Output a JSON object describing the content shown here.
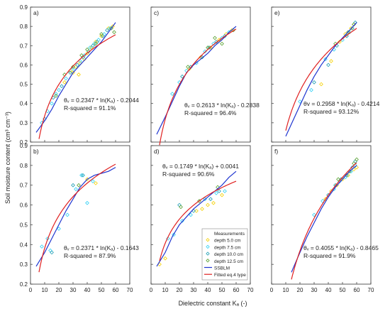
{
  "figure": {
    "ylabel": "Soil moisture content (cm³ cm⁻³)",
    "xlabel": "Dielectric constant Kₐ (-)"
  },
  "legend": {
    "items": [
      {
        "label": "Measurements",
        "kind": "header"
      },
      {
        "label": "depth 5.0 cm",
        "kind": "marker",
        "color": "#f5d000"
      },
      {
        "label": "depth 7.5 cm",
        "kind": "marker",
        "color": "#30d0f5"
      },
      {
        "label": "depth 10.0 cm",
        "kind": "marker",
        "color": "#1e9eb4"
      },
      {
        "label": "depth 12.5 cm",
        "kind": "marker",
        "color": "#58a030"
      },
      {
        "label": "SSBLM",
        "kind": "line",
        "color": "#1f35d0"
      },
      {
        "label": "Fitted eq.4 type",
        "kind": "line",
        "color": "#e02020"
      }
    ]
  },
  "colors": {
    "ssblm": "#1f35d0",
    "fitted": "#e02020",
    "d5": "#f5d000",
    "d75": "#30d0f5",
    "d10": "#1e9eb4",
    "d125": "#58a030"
  },
  "chart_data": [
    {
      "type": "scatter",
      "panel": "a)",
      "xlim": [
        0,
        70
      ],
      "ylim": [
        0.2,
        0.9
      ],
      "xticks": [
        "0",
        "10",
        "20",
        "30",
        "40",
        "50",
        "60",
        "70"
      ],
      "yticks": [
        "0.2",
        "0.3",
        "0.4",
        "0.5",
        "0.6",
        "0.7",
        "0.8",
        "0.9"
      ],
      "show_x_ticklabels": false,
      "show_y_ticklabels": true,
      "annotation": {
        "equation": "θᵥ = 0.2347 * ln(Kₐ) - 0.2044",
        "rsq": "R-squared = 91.1%"
      },
      "fitted": {
        "a": 0.2347,
        "b": -0.2044,
        "xmin": 6,
        "xmax": 60
      },
      "ssblm": {
        "x": [
          4,
          10,
          15,
          20,
          25,
          30,
          35,
          40,
          45,
          50,
          55,
          60
        ],
        "y": [
          0.25,
          0.31,
          0.37,
          0.44,
          0.5,
          0.56,
          0.6,
          0.64,
          0.68,
          0.72,
          0.77,
          0.82
        ]
      },
      "series": [
        {
          "key": "d5",
          "x": [
            24,
            28,
            32,
            34,
            38,
            40,
            43,
            46,
            50,
            55,
            58,
            30,
            35
          ],
          "y": [
            0.51,
            0.57,
            0.59,
            0.55,
            0.63,
            0.66,
            0.69,
            0.72,
            0.75,
            0.79,
            0.8,
            0.56,
            0.61
          ]
        },
        {
          "key": "d75",
          "x": [
            8,
            12,
            15,
            18,
            20,
            25,
            30,
            35,
            38,
            42,
            45,
            48,
            52,
            56
          ],
          "y": [
            0.3,
            0.36,
            0.4,
            0.45,
            0.47,
            0.53,
            0.58,
            0.62,
            0.65,
            0.69,
            0.71,
            0.73,
            0.76,
            0.79
          ]
        },
        {
          "key": "d10",
          "x": [
            10,
            16,
            22,
            28,
            33,
            37,
            41,
            44,
            47,
            51,
            54
          ],
          "y": [
            0.32,
            0.43,
            0.49,
            0.56,
            0.6,
            0.64,
            0.67,
            0.7,
            0.72,
            0.75,
            0.78
          ]
        },
        {
          "key": "d125",
          "x": [
            18,
            24,
            30,
            36,
            40,
            46,
            50,
            57,
            59
          ],
          "y": [
            0.44,
            0.55,
            0.59,
            0.65,
            0.68,
            0.71,
            0.76,
            0.79,
            0.77
          ]
        }
      ]
    },
    {
      "type": "scatter",
      "panel": "c)",
      "xlim": [
        0,
        70
      ],
      "ylim": [
        0.2,
        0.9
      ],
      "xticks": [
        "0",
        "10",
        "20",
        "30",
        "40",
        "50",
        "60",
        "70"
      ],
      "yticks": [
        "0.2",
        "0.3",
        "0.4",
        "0.5",
        "0.6",
        "0.7",
        "0.8",
        "0.9"
      ],
      "show_x_ticklabels": false,
      "show_y_ticklabels": false,
      "annotation": {
        "equation": "θᵥ = 0.2613 * ln(Kₐ) - 0.2838",
        "rsq": "R-squared = 96.4%"
      },
      "fitted": {
        "a": 0.2613,
        "b": -0.2838,
        "xmin": 6,
        "xmax": 60
      },
      "ssblm": {
        "x": [
          4,
          10,
          15,
          20,
          25,
          30,
          35,
          40,
          45,
          50,
          55,
          60
        ],
        "y": [
          0.24,
          0.33,
          0.41,
          0.49,
          0.56,
          0.6,
          0.63,
          0.66,
          0.7,
          0.73,
          0.77,
          0.8
        ]
      },
      "series": [
        {
          "key": "d5",
          "x": [
            27,
            35,
            42,
            48,
            53,
            57
          ],
          "y": [
            0.58,
            0.64,
            0.69,
            0.73,
            0.76,
            0.78
          ]
        },
        {
          "key": "d75",
          "x": [
            15,
            20,
            25,
            32,
            38,
            44,
            50,
            55
          ],
          "y": [
            0.45,
            0.51,
            0.57,
            0.61,
            0.67,
            0.71,
            0.74,
            0.77
          ]
        },
        {
          "key": "d10",
          "x": [
            22,
            28,
            36,
            41,
            46,
            52
          ],
          "y": [
            0.54,
            0.59,
            0.64,
            0.69,
            0.72,
            0.75
          ]
        },
        {
          "key": "d125",
          "x": [
            26,
            40,
            45,
            50,
            58
          ],
          "y": [
            0.59,
            0.69,
            0.74,
            0.71,
            0.78
          ]
        }
      ]
    },
    {
      "type": "scatter",
      "panel": "e)",
      "xlim": [
        0,
        70
      ],
      "ylim": [
        0.2,
        0.9
      ],
      "xticks": [
        "0",
        "10",
        "20",
        "30",
        "40",
        "50",
        "60",
        "70"
      ],
      "yticks": [
        "0.2",
        "0.3",
        "0.4",
        "0.5",
        "0.6",
        "0.7",
        "0.8",
        "0.9"
      ],
      "show_x_ticklabels": false,
      "show_y_ticklabels": false,
      "annotation": {
        "equation": "θv = 0.2958 * ln(Kₐ) - 0.4214",
        "rsq": "R-squared = 93.12%"
      },
      "fitted": {
        "a": 0.2958,
        "b": -0.4214,
        "xmin": 10,
        "xmax": 60
      },
      "ssblm": {
        "x": [
          10,
          15,
          20,
          25,
          30,
          35,
          40,
          45,
          50,
          55,
          60
        ],
        "y": [
          0.23,
          0.31,
          0.39,
          0.47,
          0.54,
          0.6,
          0.65,
          0.7,
          0.74,
          0.78,
          0.82
        ]
      },
      "series": [
        {
          "key": "d5",
          "x": [
            35,
            42,
            48,
            52,
            56,
            58
          ],
          "y": [
            0.5,
            0.62,
            0.72,
            0.76,
            0.79,
            0.81
          ]
        },
        {
          "key": "d75",
          "x": [
            20,
            28,
            38,
            44,
            50,
            55
          ],
          "y": [
            0.41,
            0.47,
            0.63,
            0.68,
            0.73,
            0.77
          ]
        },
        {
          "key": "d10",
          "x": [
            30,
            40,
            46,
            53,
            57,
            59
          ],
          "y": [
            0.51,
            0.6,
            0.7,
            0.75,
            0.79,
            0.82
          ]
        },
        {
          "key": "d125",
          "x": [
            45,
            54,
            58
          ],
          "y": [
            0.71,
            0.77,
            0.81
          ]
        }
      ]
    },
    {
      "type": "scatter",
      "panel": "b)",
      "xlim": [
        0,
        70
      ],
      "ylim": [
        0.2,
        0.9
      ],
      "xticks": [
        "0",
        "10",
        "20",
        "30",
        "40",
        "50",
        "60",
        "70"
      ],
      "yticks": [
        "0.2",
        "0.3",
        "0.4",
        "0.5",
        "0.6",
        "0.7",
        "0.8",
        "0.9"
      ],
      "show_x_ticklabels": true,
      "show_y_ticklabels": true,
      "annotation": {
        "equation": "θᵥ = 0.2371 * ln(Kₐ) - 0.1643",
        "rsq": "R-squared = 87.9%"
      },
      "fitted": {
        "a": 0.2371,
        "b": -0.1643,
        "xmin": 6,
        "xmax": 60
      },
      "ssblm": {
        "x": [
          4,
          10,
          15,
          20,
          25,
          30,
          35,
          40,
          45,
          50,
          55,
          60
        ],
        "y": [
          0.29,
          0.36,
          0.43,
          0.5,
          0.57,
          0.63,
          0.69,
          0.73,
          0.75,
          0.76,
          0.77,
          0.79
        ]
      },
      "series": [
        {
          "key": "d5",
          "x": [
            40,
            46
          ],
          "y": [
            0.73,
            0.71
          ]
        },
        {
          "key": "d75",
          "x": [
            8,
            12,
            14,
            20,
            26,
            32,
            36,
            40,
            44
          ],
          "y": [
            0.39,
            0.43,
            0.37,
            0.48,
            0.55,
            0.68,
            0.75,
            0.61,
            0.72
          ]
        },
        {
          "key": "d10",
          "x": [
            15,
            30,
            37
          ],
          "y": [
            0.36,
            0.7,
            0.75
          ]
        },
        {
          "key": "d125",
          "x": [
            34
          ],
          "y": [
            0.7
          ]
        }
      ]
    },
    {
      "type": "scatter",
      "panel": "d)",
      "xlim": [
        0,
        70
      ],
      "ylim": [
        0.2,
        0.9
      ],
      "xticks": [
        "0",
        "10",
        "20",
        "30",
        "40",
        "50",
        "60",
        "70"
      ],
      "yticks": [
        "0.2",
        "0.3",
        "0.4",
        "0.5",
        "0.6",
        "0.7",
        "0.8",
        "0.9"
      ],
      "show_x_ticklabels": true,
      "show_y_ticklabels": false,
      "annotation": {
        "equation": "θᵥ = 0.1749 * ln(Kₐ) + 0.0041",
        "rsq": "R-squared = 90.6%"
      },
      "fitted": {
        "a": 0.1749,
        "b": 0.0041,
        "xmin": 6,
        "xmax": 60
      },
      "ssblm": {
        "x": [
          4,
          10,
          15,
          20,
          25,
          30,
          35,
          40,
          45,
          50,
          55,
          60
        ],
        "y": [
          0.29,
          0.36,
          0.44,
          0.5,
          0.54,
          0.58,
          0.61,
          0.64,
          0.67,
          0.7,
          0.74,
          0.77
        ]
      },
      "series": [
        {
          "key": "d5",
          "x": [
            6,
            10,
            32,
            36,
            40,
            44,
            50
          ],
          "y": [
            0.3,
            0.33,
            0.57,
            0.58,
            0.6,
            0.61,
            0.65
          ]
        },
        {
          "key": "d75",
          "x": [
            12,
            16,
            22,
            28,
            38,
            46,
            52
          ],
          "y": [
            0.43,
            0.45,
            0.52,
            0.55,
            0.63,
            0.66,
            0.67
          ]
        },
        {
          "key": "d10",
          "x": [
            20,
            30,
            42,
            48
          ],
          "y": [
            0.6,
            0.57,
            0.63,
            0.67
          ]
        },
        {
          "key": "d125",
          "x": [
            21,
            34,
            47
          ],
          "y": [
            0.59,
            0.62,
            0.69
          ]
        }
      ]
    },
    {
      "type": "scatter",
      "panel": "f)",
      "xlim": [
        0,
        70
      ],
      "ylim": [
        0.2,
        0.9
      ],
      "xticks": [
        "0",
        "10",
        "20",
        "30",
        "40",
        "50",
        "60",
        "70"
      ],
      "yticks": [
        "0.2",
        "0.3",
        "0.4",
        "0.5",
        "0.6",
        "0.7",
        "0.8",
        "0.9"
      ],
      "show_x_ticklabels": true,
      "show_y_ticklabels": false,
      "annotation": {
        "equation": "θᵥ = 0.4055 * ln(Kₐ) - 0.8465",
        "rsq": "R-squared = 91.9%"
      },
      "fitted": {
        "a": 0.4055,
        "b": -0.8465,
        "xmin": 14,
        "xmax": 60
      },
      "ssblm": {
        "x": [
          14,
          20,
          25,
          30,
          35,
          40,
          45,
          50,
          55,
          60
        ],
        "y": [
          0.26,
          0.36,
          0.44,
          0.51,
          0.58,
          0.64,
          0.69,
          0.73,
          0.77,
          0.8
        ]
      },
      "series": [
        {
          "key": "d5",
          "x": [
            38,
            42,
            46,
            50,
            54,
            58,
            60
          ],
          "y": [
            0.63,
            0.67,
            0.7,
            0.73,
            0.75,
            0.78,
            0.79
          ]
        },
        {
          "key": "d75",
          "x": [
            30,
            36,
            44,
            48,
            52,
            56,
            59
          ],
          "y": [
            0.55,
            0.62,
            0.68,
            0.72,
            0.74,
            0.77,
            0.8
          ]
        },
        {
          "key": "d10",
          "x": [
            40,
            45,
            49,
            53,
            57,
            59
          ],
          "y": [
            0.65,
            0.7,
            0.73,
            0.75,
            0.79,
            0.82
          ]
        },
        {
          "key": "d125",
          "x": [
            47,
            55,
            58,
            60
          ],
          "y": [
            0.73,
            0.77,
            0.81,
            0.83
          ]
        }
      ]
    }
  ]
}
